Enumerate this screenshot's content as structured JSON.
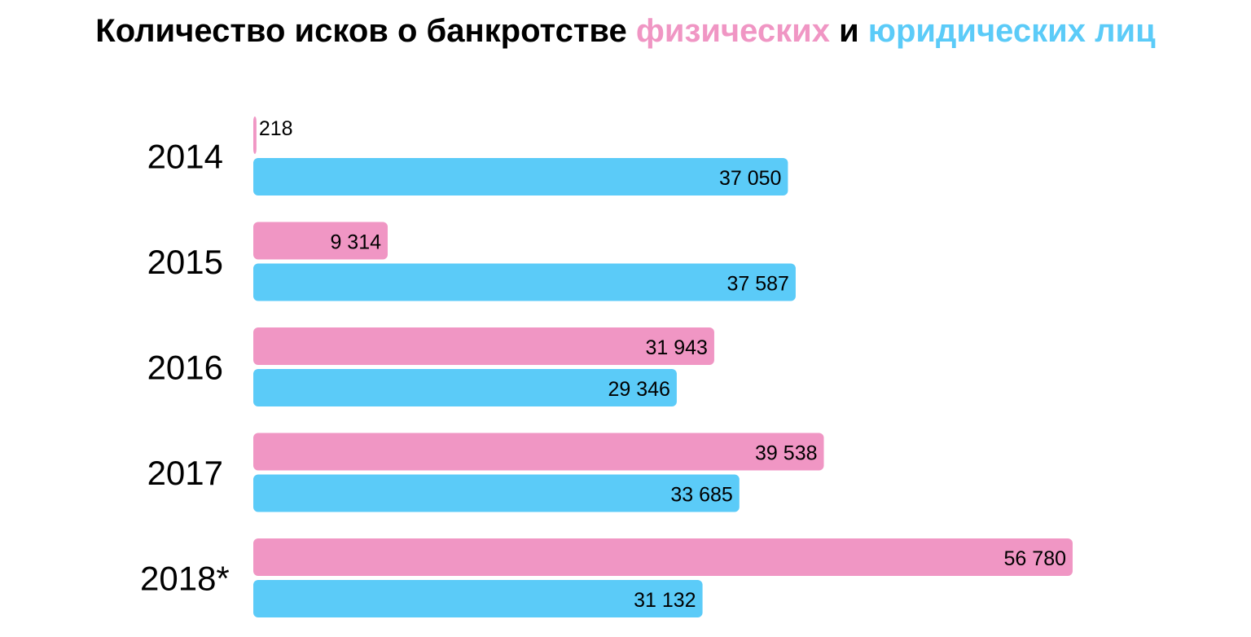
{
  "title": {
    "part1": "Количество исков о банкротстве ",
    "part2": "физических",
    "part3": " и ",
    "part4": "юридических лиц"
  },
  "colors": {
    "individuals": "#f096c4",
    "legal_entities": "#5bcbf8",
    "text": "#000000"
  },
  "chart_data": {
    "type": "bar",
    "orientation": "horizontal",
    "title": "Количество исков о банкротстве физических и юридических лиц",
    "categories": [
      "2014",
      "2015",
      "2016",
      "2017",
      "2018*"
    ],
    "series": [
      {
        "name": "физических",
        "values": [
          218,
          9314,
          31943,
          39538,
          56780
        ],
        "labels": [
          "218",
          "9 314",
          "31 943",
          "39 538",
          "56 780"
        ]
      },
      {
        "name": "юридических лиц",
        "values": [
          37050,
          37587,
          29346,
          33685,
          31132
        ],
        "labels": [
          "37 050",
          "37 587",
          "29 346",
          "33 685",
          "31 132"
        ]
      }
    ],
    "xlim": [
      0,
      56780
    ],
    "grid": false,
    "axes_visible": false
  }
}
